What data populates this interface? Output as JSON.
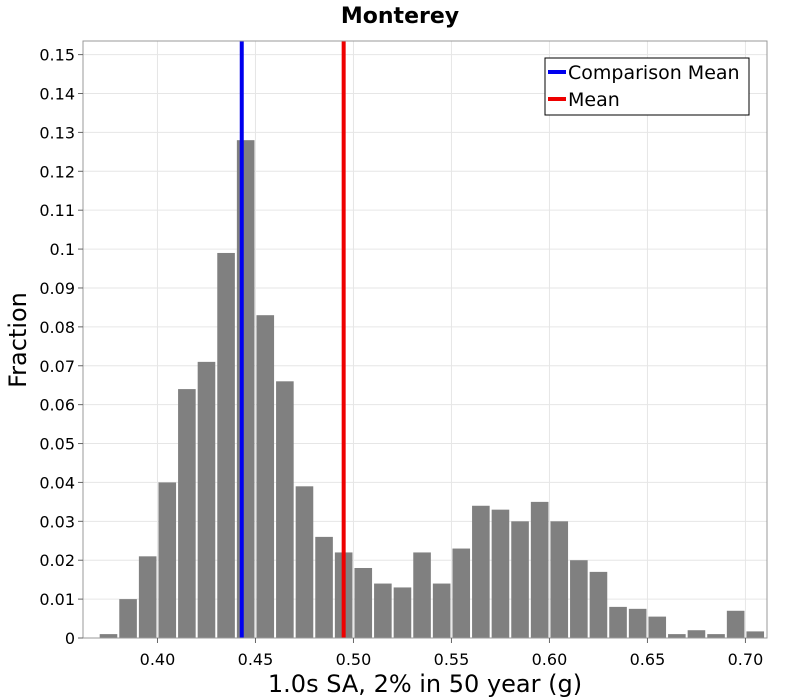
{
  "chart_data": {
    "type": "bar",
    "title": "Monterey",
    "xlabel": "1.0s SA, 2% in 50 year (g)",
    "ylabel": "Fraction",
    "xlim": [
      0.362,
      0.711
    ],
    "ylim": [
      0,
      0.1535
    ],
    "grid": true,
    "legend_position": "top-right",
    "bar_color": "#808080",
    "bin_width": 0.01,
    "bin_centers": [
      0.375,
      0.385,
      0.395,
      0.405,
      0.415,
      0.425,
      0.435,
      0.445,
      0.455,
      0.465,
      0.475,
      0.485,
      0.495,
      0.505,
      0.515,
      0.525,
      0.535,
      0.545,
      0.555,
      0.565,
      0.575,
      0.585,
      0.595,
      0.605,
      0.615,
      0.625,
      0.635,
      0.645,
      0.655,
      0.665,
      0.675,
      0.685,
      0.695,
      0.705
    ],
    "values": [
      0.001,
      0.01,
      0.021,
      0.04,
      0.064,
      0.071,
      0.099,
      0.128,
      0.083,
      0.066,
      0.039,
      0.026,
      0.022,
      0.018,
      0.014,
      0.013,
      0.022,
      0.014,
      0.023,
      0.034,
      0.033,
      0.03,
      0.035,
      0.03,
      0.02,
      0.017,
      0.008,
      0.0075,
      0.0055,
      0.001,
      0.002,
      0.001,
      0.007,
      0.0017
    ],
    "x_ticks": [
      {
        "value": 0.4,
        "label": "0.40"
      },
      {
        "value": 0.45,
        "label": "0.45"
      },
      {
        "value": 0.5,
        "label": "0.50"
      },
      {
        "value": 0.55,
        "label": "0.55"
      },
      {
        "value": 0.6,
        "label": "0.60"
      },
      {
        "value": 0.65,
        "label": "0.65"
      },
      {
        "value": 0.7,
        "label": "0.70"
      }
    ],
    "y_ticks": [
      {
        "value": 0,
        "label": "0"
      },
      {
        "value": 0.01,
        "label": "0.01"
      },
      {
        "value": 0.02,
        "label": "0.02"
      },
      {
        "value": 0.03,
        "label": "0.03"
      },
      {
        "value": 0.04,
        "label": "0.04"
      },
      {
        "value": 0.05,
        "label": "0.05"
      },
      {
        "value": 0.06,
        "label": "0.06"
      },
      {
        "value": 0.07,
        "label": "0.07"
      },
      {
        "value": 0.08,
        "label": "0.08"
      },
      {
        "value": 0.09,
        "label": "0.09"
      },
      {
        "value": 0.1,
        "label": "0.1"
      },
      {
        "value": 0.11,
        "label": "0.11"
      },
      {
        "value": 0.12,
        "label": "0.12"
      },
      {
        "value": 0.13,
        "label": "0.13"
      },
      {
        "value": 0.14,
        "label": "0.14"
      },
      {
        "value": 0.15,
        "label": "0.15"
      }
    ],
    "reference_lines": [
      {
        "name": "Comparison Mean",
        "x": 0.443,
        "color": "#0000ee"
      },
      {
        "name": "Mean",
        "x": 0.495,
        "color": "#ee0000"
      }
    ]
  }
}
